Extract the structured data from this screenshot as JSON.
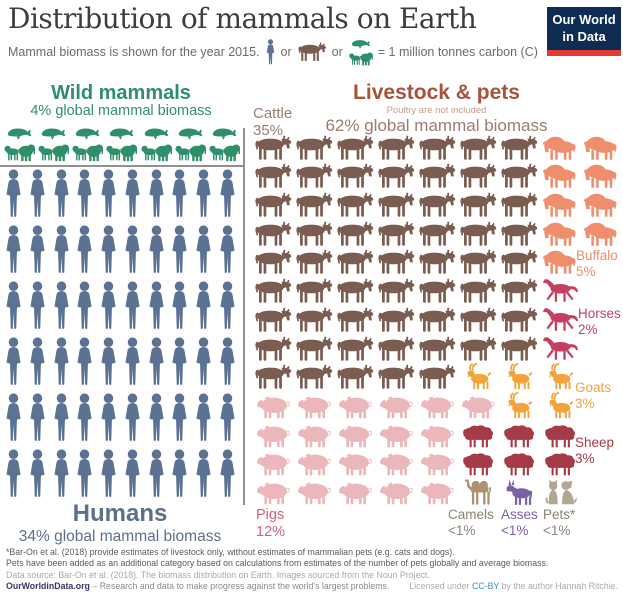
{
  "header": {
    "title": "Distribution of mammals on Earth",
    "logo_line1": "Our World",
    "logo_line2": "in Data",
    "subtitle_text": "Mammal biomass is shown for the year 2015.",
    "or1": "or",
    "or2": "or",
    "legend_equals": "= 1 million tonnes carbon (C)"
  },
  "wild": {
    "title": "Wild mammals",
    "subtitle": "4% global mammal biomass",
    "icon_count": 7
  },
  "humans": {
    "title": "Humans",
    "subtitle": "34% global mammal biomass",
    "rows": 6,
    "cols": 10
  },
  "livestock": {
    "title": "Livestock & pets",
    "note": "Poultry are not included",
    "subtitle": "62% global mammal biomass",
    "cattle_label": {
      "name": "Cattle",
      "pct": "35%"
    },
    "side_labels": {
      "buffalo": {
        "name": "Buffalo",
        "pct": "5%"
      },
      "horses": {
        "name": "Horses",
        "pct": "2%"
      },
      "goats": {
        "name": "Goats",
        "pct": "3%"
      },
      "sheep": {
        "name": "Sheep",
        "pct": "3%"
      }
    },
    "bottom_labels": {
      "pigs": {
        "name": "Pigs",
        "pct": "12%"
      },
      "camels": {
        "name": "Camels",
        "pct": "<1%"
      },
      "asses": {
        "name": "Asses",
        "pct": "<1%"
      },
      "pets": {
        "name": "Pets*",
        "pct": "<1%"
      }
    },
    "rows": [
      [
        "cattle",
        "cattle",
        "cattle",
        "cattle",
        "cattle",
        "cattle",
        "cattle",
        "buffalo",
        "buffalo"
      ],
      [
        "cattle",
        "cattle",
        "cattle",
        "cattle",
        "cattle",
        "cattle",
        "cattle",
        "buffalo",
        "buffalo"
      ],
      [
        "cattle",
        "cattle",
        "cattle",
        "cattle",
        "cattle",
        "cattle",
        "cattle",
        "buffalo",
        "buffalo"
      ],
      [
        "cattle",
        "cattle",
        "cattle",
        "cattle",
        "cattle",
        "cattle",
        "cattle",
        "buffalo",
        "buffalo"
      ],
      [
        "cattle",
        "cattle",
        "cattle",
        "cattle",
        "cattle",
        "cattle",
        "cattle",
        "buffalo",
        null
      ],
      [
        "cattle",
        "cattle",
        "cattle",
        "cattle",
        "cattle",
        "cattle",
        "cattle",
        "horse",
        null
      ],
      [
        "cattle",
        "cattle",
        "cattle",
        "cattle",
        "cattle",
        "cattle",
        "cattle",
        "horse",
        null
      ],
      [
        "cattle",
        "cattle",
        "cattle",
        "cattle",
        "cattle",
        "cattle",
        "cattle",
        "horse",
        null
      ],
      [
        "cattle",
        "cattle",
        "cattle",
        "cattle",
        "cattle",
        "goat",
        "goat",
        "goat",
        null
      ],
      [
        "pig",
        "pig",
        "pig",
        "pig",
        "pig",
        "pig",
        "goat",
        "goat",
        null
      ],
      [
        "pig",
        "pig",
        "pig",
        "pig",
        "pig",
        "sheep",
        "sheep",
        "sheep",
        null
      ],
      [
        "pig",
        "pig",
        "pig",
        "pig",
        "pig",
        "sheep",
        "sheep",
        "sheep",
        null
      ],
      [
        "pig",
        "pig",
        "pig",
        "pig",
        "pig",
        "camel",
        "ass",
        "pets",
        null
      ]
    ]
  },
  "chart_data": {
    "type": "pictogram",
    "title": "Distribution of mammals on Earth",
    "subtitle": "Mammal biomass is shown for the year 2015.",
    "icon_unit": "1 icon = 1 million tonnes carbon (C)",
    "total_icons": 175,
    "series": [
      {
        "name": "Wild mammals",
        "share_label": "4% global mammal biomass",
        "icons": 7
      },
      {
        "name": "Humans",
        "share_label": "34% global mammal biomass",
        "icons": 60
      },
      {
        "name": "Livestock & pets",
        "share_label": "62% global mammal biomass",
        "note": "Poultry are not included",
        "icons": 108,
        "breakdown": [
          {
            "name": "Cattle",
            "percent": "35%",
            "icons": 61
          },
          {
            "name": "Buffalo",
            "percent": "5%",
            "icons": 9
          },
          {
            "name": "Horses",
            "percent": "2%",
            "icons": 3
          },
          {
            "name": "Goats",
            "percent": "3%",
            "icons": 5
          },
          {
            "name": "Sheep",
            "percent": "3%",
            "icons": 6
          },
          {
            "name": "Pigs",
            "percent": "12%",
            "icons": 21
          },
          {
            "name": "Camels",
            "percent": "<1%",
            "icons": 1
          },
          {
            "name": "Asses",
            "percent": "<1%",
            "icons": 1
          },
          {
            "name": "Pets*",
            "percent": "<1%",
            "icons": 1
          }
        ]
      }
    ]
  },
  "footer": {
    "note1": "*Bar-On et al. (2018) provide estimates of livestock only, without estimates of mammalian pets (e.g. cats and dogs).",
    "note2": "Pets have been added as an additional category based on calculations from estimates of the number of pets globally and average biomass.",
    "source": "Data source: Bar-On et al. (2018). The biomass distribution on Earth. Images sourced from the Noun Project.",
    "brand": "OurWorldinData.org",
    "brand_tagline": "– Research and data to make progress against the world's largest problems.",
    "license_prefix": "Licensed under ",
    "license_link": "CC-BY",
    "license_suffix": " by the author Hannah Ritchie."
  },
  "colors": {
    "human": "#5b7292",
    "wild": "#2f8f6b",
    "cattle": "#7a5c51",
    "buffalo": "#ef8e6d",
    "horse": "#c43e60",
    "goat": "#f3a33c",
    "sheep": "#a43b46",
    "pig": "#ecb7ba",
    "camel": "#ab9371",
    "ass": "#7c60a5",
    "pets": "#b3a793",
    "humans_label": "#5d7089",
    "cattle_label": "#957f73",
    "pigs_label": "#d5617a",
    "muted_label": "#8a8276",
    "rust": "#a8523a",
    "rust_light": "#c79d88",
    "brown_gray": "#9b7d70",
    "brand": "#3d3366",
    "ccby": "#3c8dbc"
  }
}
